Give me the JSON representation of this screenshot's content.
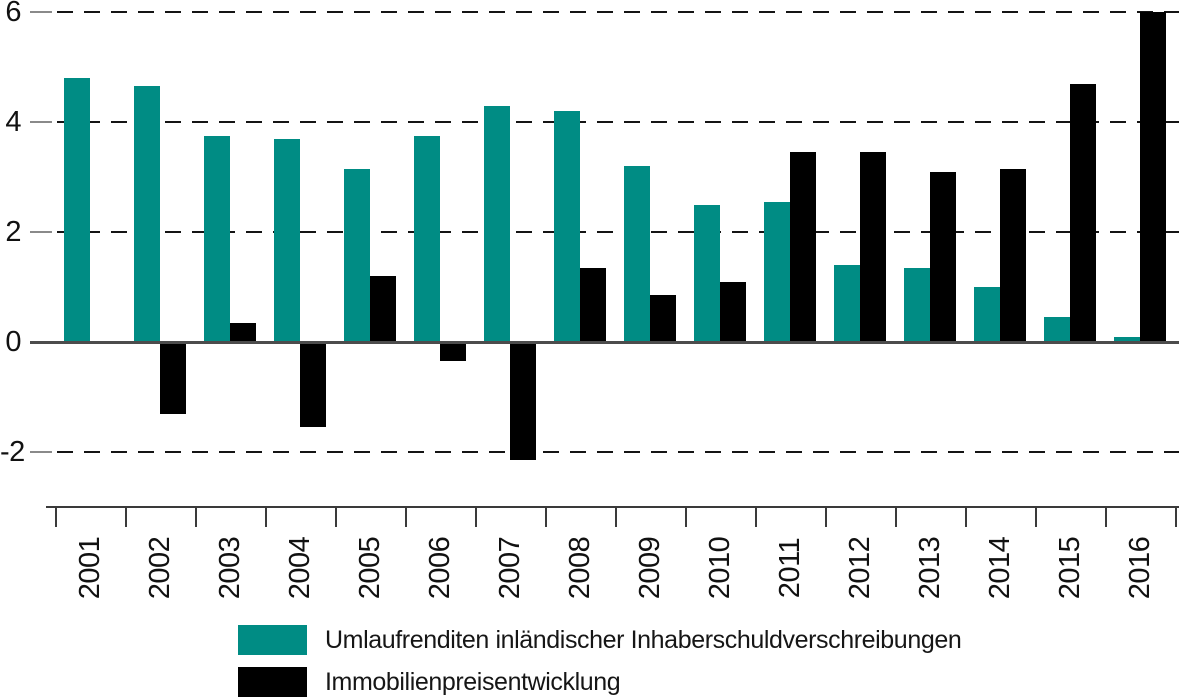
{
  "chart_data": {
    "type": "bar",
    "title": "",
    "xlabel": "",
    "ylabel": "",
    "categories": [
      "2001",
      "2002",
      "2003",
      "2004",
      "2005",
      "2006",
      "2007",
      "2008",
      "2009",
      "2010",
      "2011",
      "2012",
      "2013",
      "2014",
      "2015",
      "2016"
    ],
    "series": [
      {
        "name": "Umlaufrenditen inländischer Inhaberschuldverschreibungen",
        "color": "#008C84",
        "values": [
          4.8,
          4.65,
          3.75,
          3.7,
          3.15,
          3.75,
          4.3,
          4.2,
          3.2,
          2.5,
          2.55,
          1.4,
          1.35,
          1.0,
          0.45,
          0.1
        ]
      },
      {
        "name": "Immobilienpreisentwicklung",
        "color": "#000000",
        "values": [
          null,
          -1.3,
          0.35,
          -1.55,
          1.2,
          -0.35,
          -2.15,
          1.35,
          0.85,
          1.1,
          3.45,
          3.45,
          3.1,
          3.15,
          4.7,
          6.0
        ]
      }
    ],
    "ylim": [
      -2.9,
      6.2
    ],
    "yticks": [
      6,
      4,
      2,
      0,
      -2
    ],
    "ytick_labels": [
      "6",
      "4",
      "2",
      "0",
      "-2"
    ],
    "grid": "horizontal-dashed",
    "zero_line": true,
    "legend_position": "bottom-left",
    "x_tick_style": "boundary-ticks-with-rotated-labels"
  },
  "colors": {
    "series1": "#008C84",
    "series2": "#000000",
    "zero_line": "#4c4c4c",
    "axis": "#3a3a3a",
    "grid_dash": "#141414",
    "grid_tick": "#8a8a8a",
    "background": "#ffffff",
    "text": "#161616"
  },
  "legend": {
    "item1": "Umlaufrenditen inländischer Inhaberschuldverschreibungen",
    "item2": "Immobilienpreisentwicklung"
  }
}
